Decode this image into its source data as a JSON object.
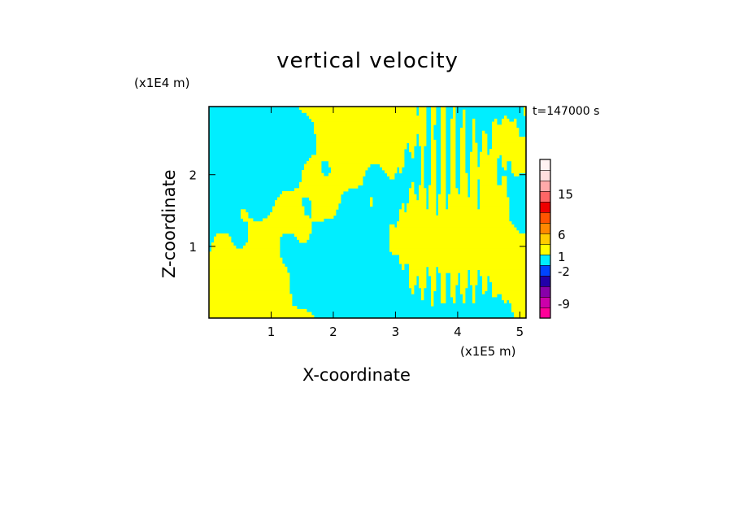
{
  "chart_data": {
    "type": "heatmap",
    "title": "vertical velocity",
    "xlabel": "X-coordinate",
    "ylabel": "Z-coordinate",
    "x_unit": "(x1E5 m)",
    "y_unit": "(x1E4 m)",
    "time_label": "t=147000 s",
    "xlim": [
      0,
      5.1
    ],
    "ylim": [
      0,
      2.95
    ],
    "x_ticks": [
      1,
      2,
      3,
      4,
      5
    ],
    "y_ticks": [
      1,
      2
    ],
    "colorbar": {
      "colors": [
        "#ff0099",
        "#cc00aa",
        "#8800aa",
        "#2200aa",
        "#0044ff",
        "#00eeff",
        "#ffff00",
        "#ffcc00",
        "#ff8800",
        "#ff5500",
        "#ee0000",
        "#ff6666",
        "#ffaaaa",
        "#ffdddd",
        "#fff2f2"
      ],
      "tick_labels": [
        "-9",
        "-2",
        "1",
        "6",
        "15"
      ]
    },
    "dominant_colors": {
      "positive": "#ffff00",
      "negative": "#00eeff"
    }
  }
}
